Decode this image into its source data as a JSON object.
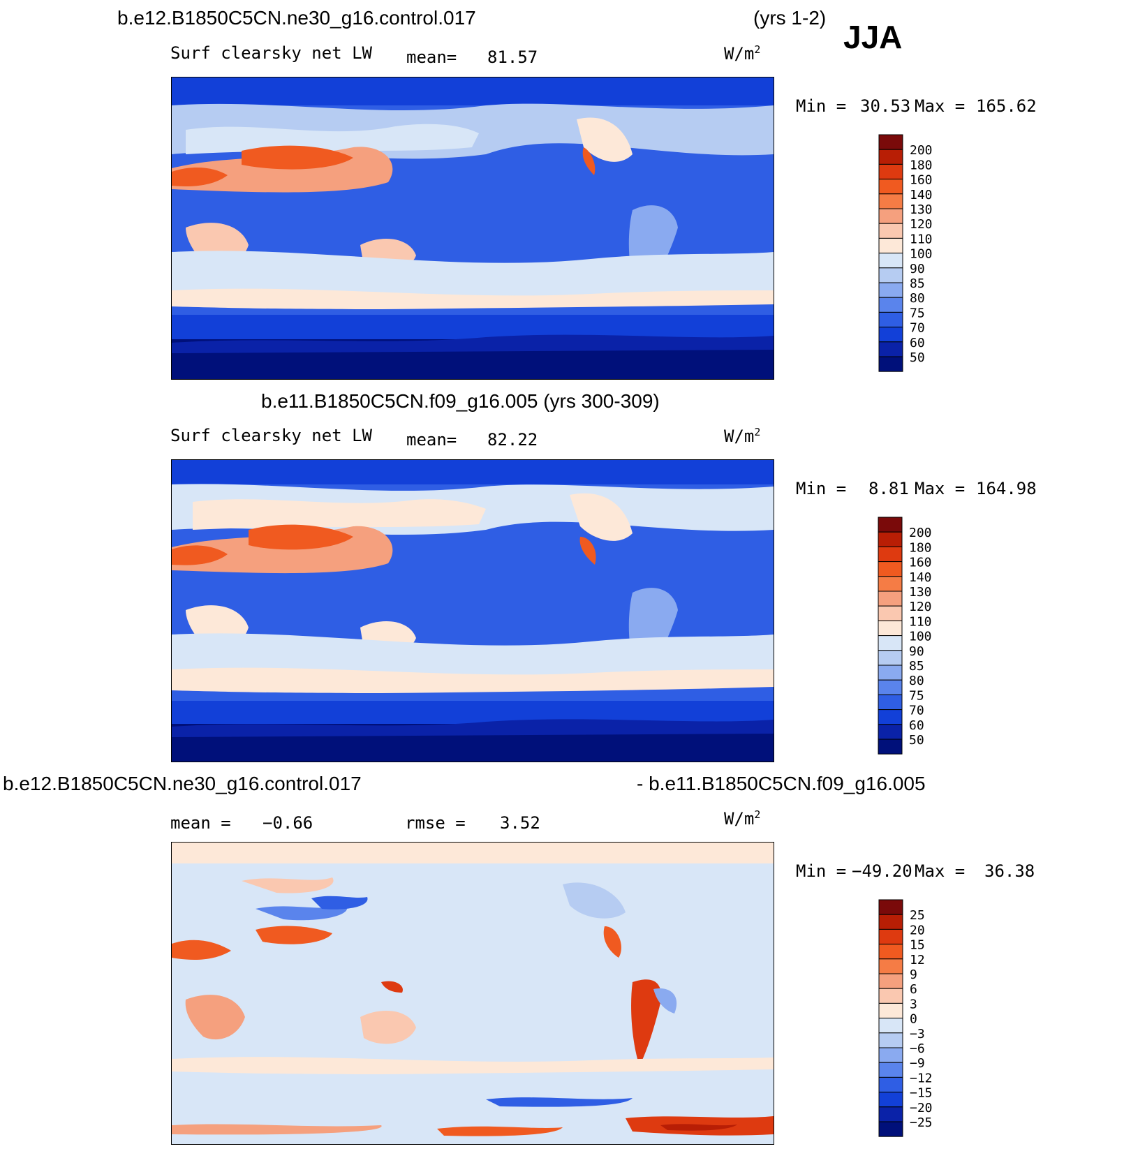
{
  "header": {
    "case1": "b.e12.B1850C5CN.ne30_g16.control.017",
    "case1_years": "(yrs 1-2)",
    "season": "JJA"
  },
  "panels": [
    {
      "id": "top",
      "variable": "Surf  clearsky  net  LW",
      "mean_label": "mean=",
      "mean_value": "81.57",
      "units": "W/m",
      "units_exp": "2",
      "min_label": "Min  =",
      "min_value": "30.53",
      "max_label": "Max  =",
      "max_value": "165.62",
      "colorbar": {
        "levels": [
          "200",
          "180",
          "160",
          "140",
          "130",
          "120",
          "110",
          "100",
          "90",
          "85",
          "80",
          "75",
          "70",
          "60",
          "50"
        ],
        "colors": [
          "#7a0a0a",
          "#b81e05",
          "#de3a10",
          "#f05a20",
          "#f57c45",
          "#f5a07e",
          "#fac8b0",
          "#fde8d8",
          "#d8e6f7",
          "#b6ccf2",
          "#8aaaf0",
          "#5a84ec",
          "#2f5ee4",
          "#1240d8",
          "#0a22a8",
          "#00107a"
        ]
      }
    },
    {
      "id": "middle",
      "title": "b.e11.B1850C5CN.f09_g16.005 (yrs 300-309)",
      "variable": "Surf  clearsky  net  LW",
      "mean_label": "mean=",
      "mean_value": "82.22",
      "units": "W/m",
      "units_exp": "2",
      "min_label": "Min  =",
      "min_value": "8.81",
      "max_label": "Max  =",
      "max_value": "164.98",
      "colorbar": {
        "levels": [
          "200",
          "180",
          "160",
          "140",
          "130",
          "120",
          "110",
          "100",
          "90",
          "85",
          "80",
          "75",
          "70",
          "60",
          "50"
        ],
        "colors": [
          "#7a0a0a",
          "#b81e05",
          "#de3a10",
          "#f05a20",
          "#f57c45",
          "#f5a07e",
          "#fac8b0",
          "#fde8d8",
          "#d8e6f7",
          "#b6ccf2",
          "#8aaaf0",
          "#5a84ec",
          "#2f5ee4",
          "#1240d8",
          "#0a22a8",
          "#00107a"
        ]
      }
    },
    {
      "id": "bottom",
      "title_left": "b.e12.B1850C5CN.ne30_g16.control.017",
      "title_right": "- b.e11.B1850C5CN.f09_g16.005",
      "mean_label": "mean  =",
      "mean_value": "−0.66",
      "rmse_label": "rmse  =",
      "rmse_value": "3.52",
      "units": "W/m",
      "units_exp": "2",
      "min_label": "Min  =",
      "min_value": "−49.20",
      "max_label": "Max  =",
      "max_value": "36.38",
      "colorbar": {
        "levels": [
          "25",
          "20",
          "15",
          "12",
          "9",
          "6",
          "3",
          "0",
          "−3",
          "−6",
          "−9",
          "−12",
          "−15",
          "−20",
          "−25"
        ],
        "colors": [
          "#7a0a0a",
          "#b81e05",
          "#de3a10",
          "#f05a20",
          "#f57c45",
          "#f5a07e",
          "#fac8b0",
          "#fde8d8",
          "#d8e6f7",
          "#b6ccf2",
          "#8aaaf0",
          "#5a84ec",
          "#2f5ee4",
          "#1240d8",
          "#0a22a8",
          "#00107a"
        ]
      }
    }
  ]
}
